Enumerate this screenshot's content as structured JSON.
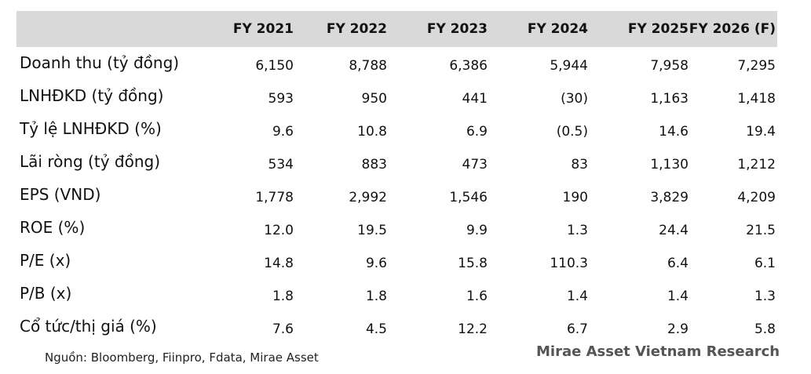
{
  "table": {
    "columns": [
      "FY 2021",
      "FY 2022",
      "FY 2023",
      "FY 2024",
      "FY 2025",
      "FY 2026 (F)"
    ],
    "rows": [
      {
        "label": "Doanh thu (tỷ đồng)",
        "values": [
          "6,150",
          "8,788",
          "6,386",
          "5,944",
          "7,958",
          "7,295"
        ]
      },
      {
        "label": "LNHĐKD (tỷ đồng)",
        "values": [
          "593",
          "950",
          "441",
          "(30)",
          "1,163",
          "1,418"
        ]
      },
      {
        "label": "Tỷ lệ LNHĐKD (%)",
        "values": [
          "9.6",
          "10.8",
          "6.9",
          "(0.5)",
          "14.6",
          "19.4"
        ]
      },
      {
        "label": "Lãi ròng (tỷ đồng)",
        "values": [
          "534",
          "883",
          "473",
          "83",
          "1,130",
          "1,212"
        ]
      },
      {
        "label": "EPS (VND)",
        "values": [
          "1,778",
          "2,992",
          "1,546",
          "190",
          "3,829",
          "4,209"
        ]
      },
      {
        "label": "ROE (%)",
        "values": [
          "12.0",
          "19.5",
          "9.9",
          "1.3",
          "24.4",
          "21.5"
        ]
      },
      {
        "label": "P/E (x)",
        "values": [
          "14.8",
          "9.6",
          "15.8",
          "110.3",
          "6.4",
          "6.1"
        ]
      },
      {
        "label": "P/B (x)",
        "values": [
          "1.8",
          "1.8",
          "1.6",
          "1.4",
          "1.4",
          "1.3"
        ]
      },
      {
        "label": "Cổ tức/thị giá (%)",
        "values": [
          "7.6",
          "4.5",
          "12.2",
          "6.7",
          "2.9",
          "5.8"
        ]
      }
    ]
  },
  "footer": {
    "source": "Nguồn: Bloomberg, Fiinpro, Fdata, Mirae Asset",
    "brand": "Mirae Asset Vietnam Research"
  }
}
